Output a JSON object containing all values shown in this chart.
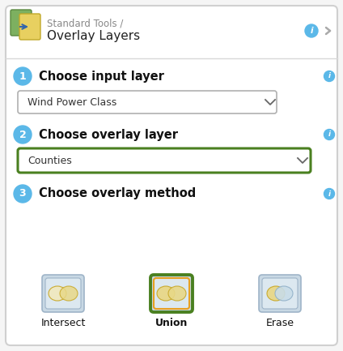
{
  "bg_color": "#f5f5f5",
  "panel_bg": "#ffffff",
  "panel_border": "#d0d0d0",
  "title_line1": "Standard Tools /",
  "title_line2": "Overlay Layers",
  "step1_label": "Choose input layer",
  "step2_label": "Choose overlay layer",
  "step3_label": "Choose overlay method",
  "dropdown1_text": "Wind Power Class",
  "dropdown2_text": "Counties",
  "dropdown_border_normal": "#b0b0b0",
  "dropdown_border_active": "#4a8020",
  "method_labels": [
    "Intersect",
    "Union",
    "Erase"
  ],
  "circle_color": "#5bb8e8",
  "info_color": "#5bb8e8",
  "icon_outer_border_normal": "#9eb4c8",
  "icon_outer_border_active": "#4a8020",
  "icon_inner_border_active": "#e8a020",
  "icon_bg": "#dce8f0",
  "icon_outer_bg": "#c8d8e4",
  "venn_yellow": "#e8d888",
  "venn_overlap": "#e0c060",
  "venn_cream": "#f0e8c0",
  "venn_blue_light": "#c8dce8",
  "venn_border": "#c8a828"
}
